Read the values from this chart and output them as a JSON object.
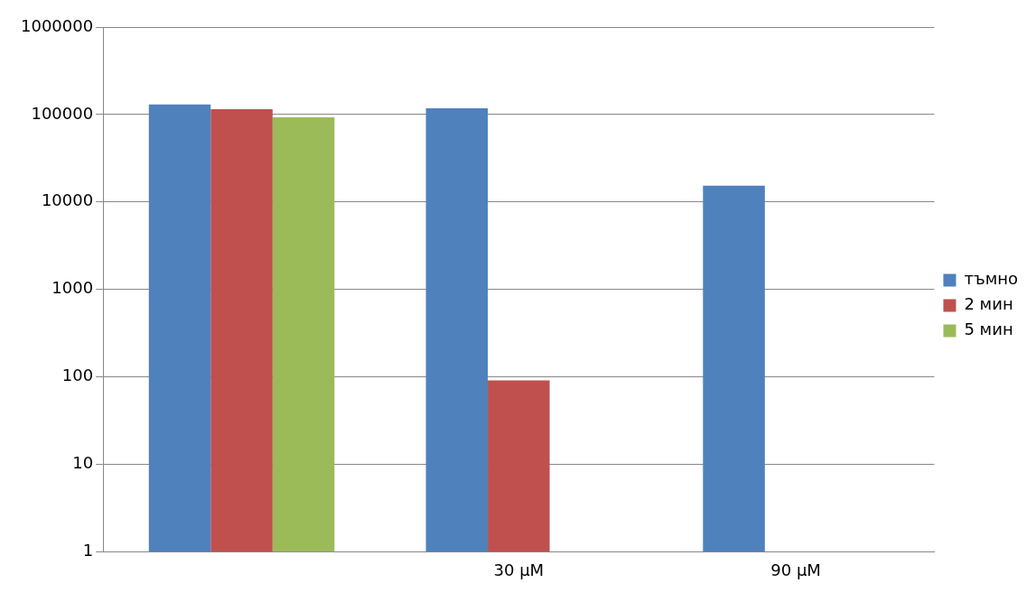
{
  "chart_data": {
    "type": "bar",
    "categories": [
      null,
      "30 µM",
      "90 µM"
    ],
    "series": [
      {
        "name": "тъмно",
        "color": "#4f81bd",
        "values": [
          130000,
          118000,
          15400
        ]
      },
      {
        "name": "2 мин",
        "color": "#c0504d",
        "values": [
          115000,
          91,
          null
        ]
      },
      {
        "name": "5 мин",
        "color": "#9bbb59",
        "values": [
          93000,
          null,
          null
        ]
      }
    ],
    "log": true,
    "ylim": [
      1,
      1000000
    ],
    "yticks": [
      1,
      10,
      100,
      1000,
      10000,
      100000,
      1000000
    ],
    "grid": "y",
    "legend": "right"
  }
}
